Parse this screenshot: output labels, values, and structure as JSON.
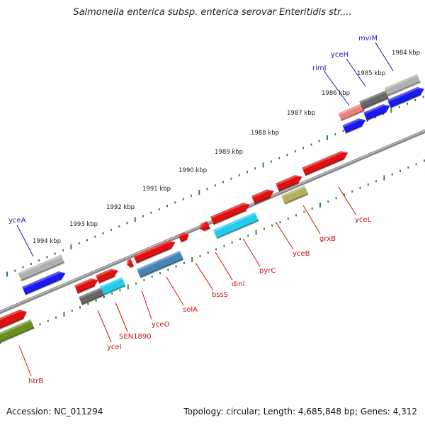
{
  "header": {
    "title": "Salmonella enterica subsp. enterica serovar Enteritidis str...."
  },
  "footer": {
    "accession": "Accession: NC_011294",
    "summary": "Topology: circular; Length: 4,685,848 bp; Genes: 4,312"
  },
  "map": {
    "scale_label_unit": "kbp",
    "scale_labels": [
      {
        "text": "1984 kbp",
        "kbp": 1984
      },
      {
        "text": "1985 kbp",
        "kbp": 1985
      },
      {
        "text": "1986 kbp",
        "kbp": 1986
      },
      {
        "text": "1987 kbp",
        "kbp": 1987
      },
      {
        "text": "1988 kbp",
        "kbp": 1988
      },
      {
        "text": "1989 kbp",
        "kbp": 1989
      },
      {
        "text": "1990 kbp",
        "kbp": 1990
      },
      {
        "text": "1991 kbp",
        "kbp": 1991
      },
      {
        "text": "1992 kbp",
        "kbp": 1992
      },
      {
        "text": "1993 kbp",
        "kbp": 1993
      },
      {
        "text": "1994 kbp",
        "kbp": 1994
      }
    ],
    "gene_labels_top": [
      "mviM",
      "yceH",
      "rimJ",
      "yceA"
    ],
    "gene_labels_bottom": [
      "yceL",
      "grxB",
      "yceB",
      "pyrC",
      "dinI",
      "bssS",
      "solA",
      "yceO",
      "SEN1890",
      "yceI",
      "htrB"
    ],
    "colors": {
      "backbone": "#8a8a8a",
      "scale_ticks": "#2e8b2e",
      "forward_gene": "#e01010",
      "reverse_gene": "#1a1aee",
      "label_top": "#1a1aaa",
      "label_bottom": "#cc1010",
      "cyan_feature": "#22ccee",
      "steel_feature": "#4682b4",
      "olive_feature": "#6b8e23",
      "khaki_feature": "#b5b060",
      "gray_feature": "#b0b0b0",
      "dark_gray_feature": "#666666",
      "pink_feature": "#f08080"
    }
  }
}
